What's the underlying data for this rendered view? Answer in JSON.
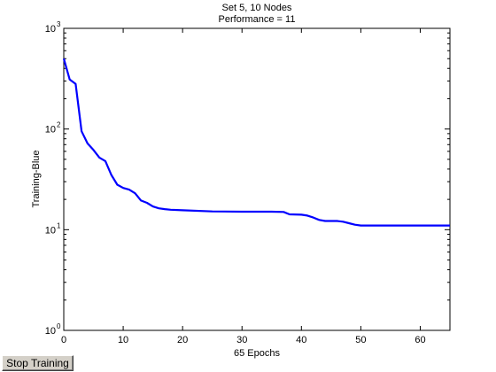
{
  "window": {
    "stop_button_label": "Stop Training"
  },
  "chart_data": {
    "type": "line",
    "title_lines": [
      "Set 5, 10 Nodes",
      "Performance = 11"
    ],
    "xlabel": "65 Epochs",
    "ylabel": "Training-Blue",
    "xlim": [
      0,
      65
    ],
    "ylim": [
      1,
      1000
    ],
    "yscale": "log",
    "x_ticks": [
      0,
      10,
      20,
      30,
      40,
      50,
      60
    ],
    "y_ticks": [
      {
        "value": 1,
        "base": "10",
        "exp": "0"
      },
      {
        "value": 10,
        "base": "10",
        "exp": "1"
      },
      {
        "value": 100,
        "base": "10",
        "exp": "2"
      },
      {
        "value": 1000,
        "base": "10",
        "exp": "3"
      }
    ],
    "grid": false,
    "series": [
      {
        "color": "#0000ff",
        "x": [
          0,
          1,
          2,
          3,
          4,
          5,
          6,
          7,
          8,
          9,
          10,
          11,
          12,
          13,
          14,
          15,
          16,
          17,
          18,
          20,
          25,
          30,
          35,
          37,
          38,
          40,
          41,
          42,
          43,
          44,
          45,
          46,
          47,
          48,
          49,
          50,
          55,
          60,
          65
        ],
        "y": [
          500,
          310,
          280,
          95,
          72,
          62,
          52,
          48,
          35,
          28,
          26,
          25,
          23,
          19.5,
          18.5,
          17,
          16.3,
          16,
          15.8,
          15.6,
          15.2,
          15.1,
          15.1,
          15,
          14.2,
          14.1,
          13.8,
          13.2,
          12.5,
          12.2,
          12.2,
          12.2,
          12,
          11.6,
          11.2,
          11,
          11,
          11,
          11
        ]
      }
    ]
  }
}
